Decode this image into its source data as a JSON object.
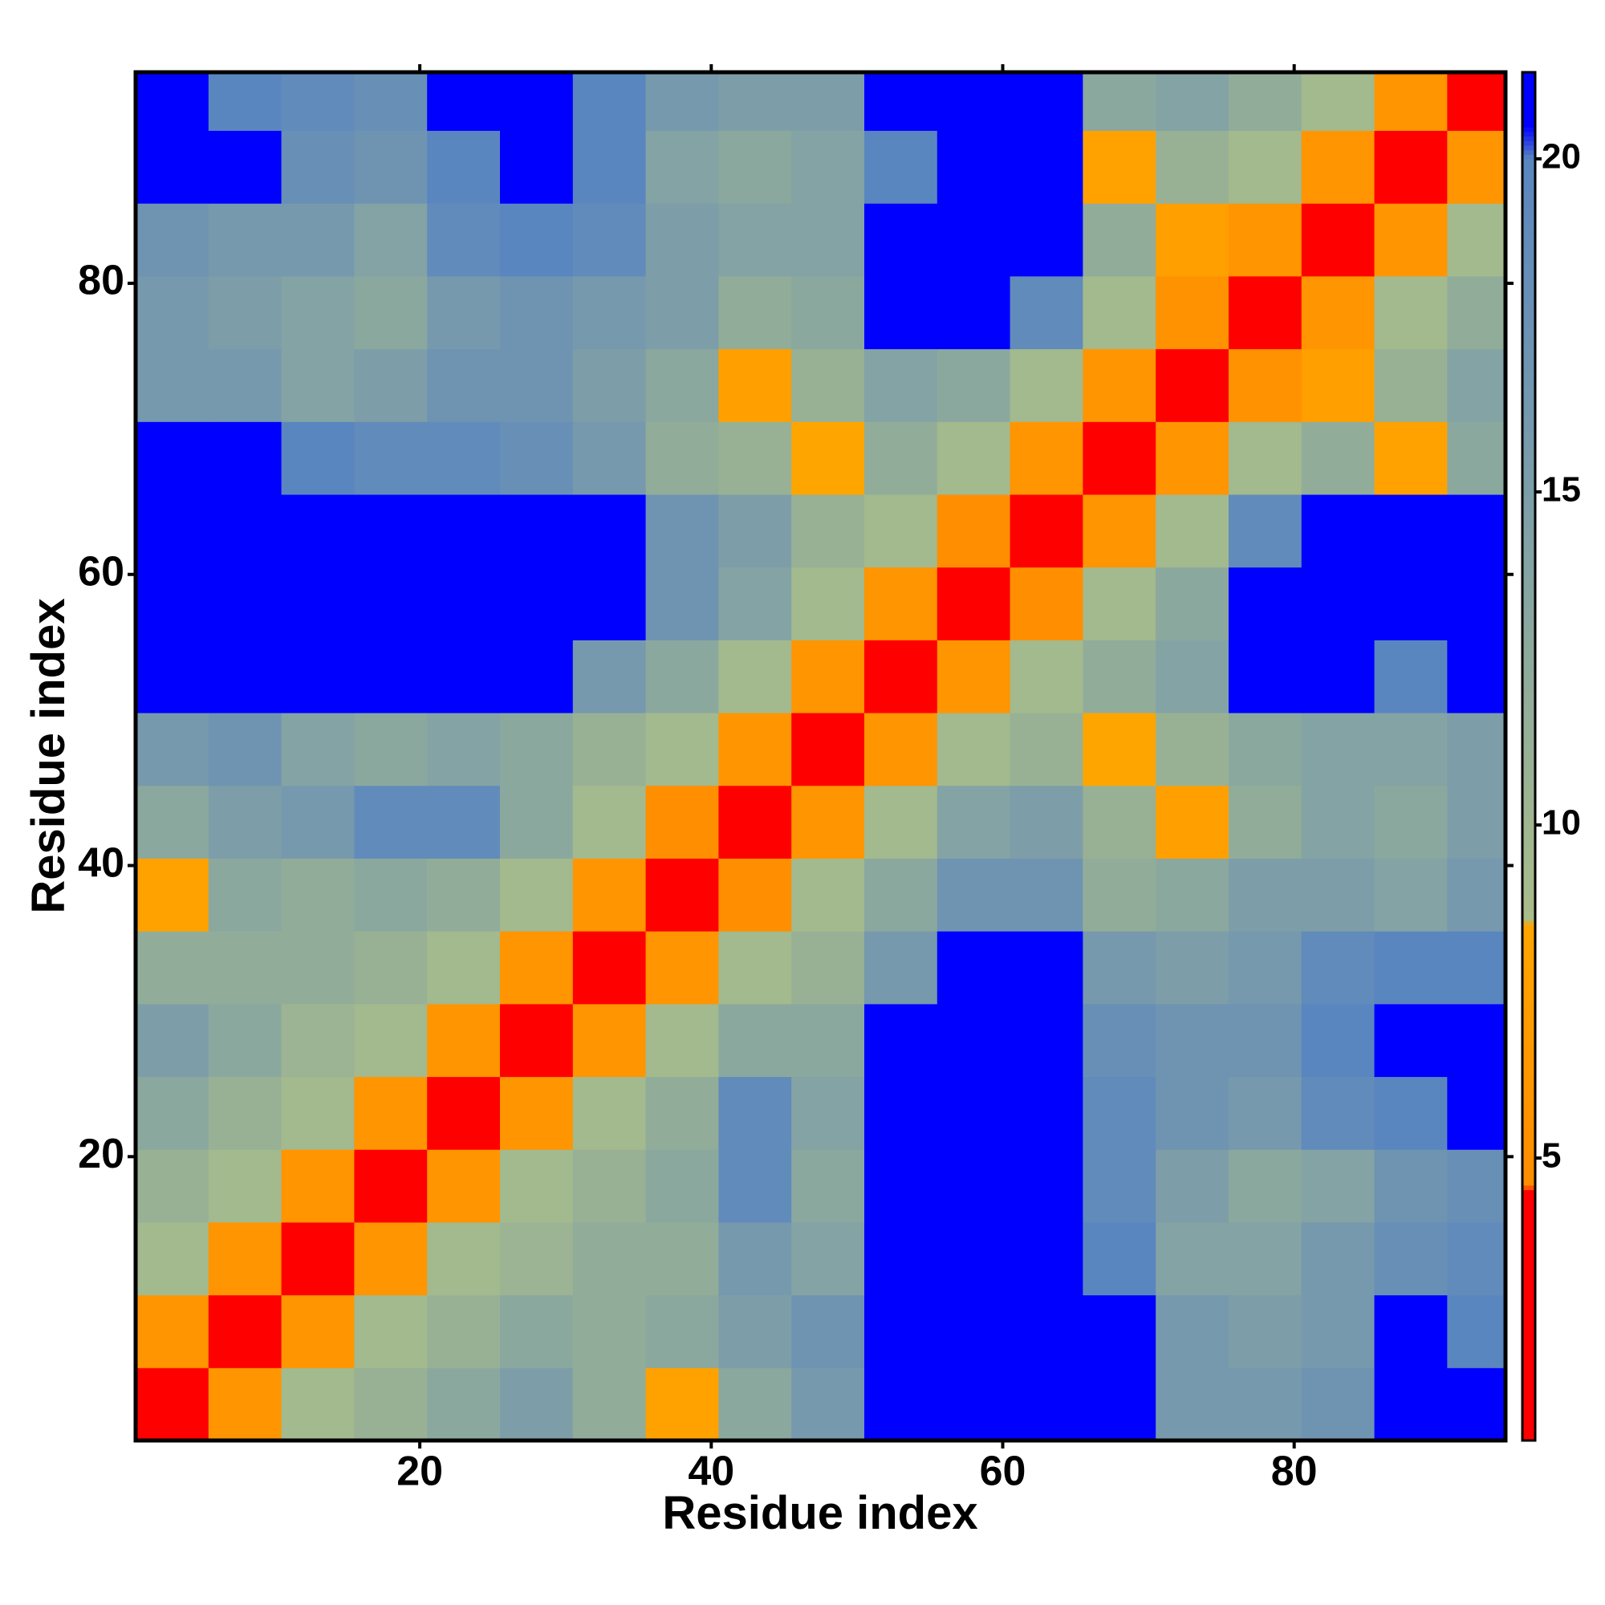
{
  "chart_data": {
    "type": "heatmap",
    "xlabel": "Residue index",
    "ylabel": "Residue index",
    "x_bins": [
      0.5,
      5.5,
      10.5,
      15.5,
      20.5,
      25.5,
      30.5,
      35.5,
      40.5,
      45.5,
      50.5,
      55.5,
      60.5,
      65.5,
      70.5,
      75.5,
      80.5,
      85.5,
      90.5,
      94.5
    ],
    "y_bins": [
      0.5,
      5.5,
      10.5,
      15.5,
      20.5,
      25.5,
      30.5,
      35.5,
      40.5,
      45.5,
      50.5,
      55.5,
      60.5,
      65.5,
      70.5,
      75.5,
      80.5,
      85.5,
      90.5,
      94.5
    ],
    "z": [
      [
        2.5,
        6,
        9.5,
        11,
        13,
        15,
        12,
        8,
        13,
        16,
        21,
        21,
        21,
        21,
        16,
        16,
        17,
        21,
        21
      ],
      [
        6,
        2.5,
        6,
        9.5,
        11,
        13,
        12,
        13,
        15,
        17,
        21,
        21,
        21,
        21,
        16,
        15,
        16,
        21,
        20
      ],
      [
        9.5,
        6,
        2.5,
        6,
        9.5,
        10.5,
        12,
        12,
        16,
        14,
        21,
        21,
        21,
        20,
        14,
        14,
        16,
        18,
        19
      ],
      [
        11,
        9.5,
        6,
        2.5,
        6,
        9.5,
        11,
        13,
        19,
        13,
        21,
        21,
        21,
        19,
        15,
        13,
        14,
        17,
        18
      ],
      [
        13,
        11,
        9.5,
        6,
        2.5,
        6,
        9.5,
        12,
        19,
        14,
        21,
        21,
        21,
        19,
        17,
        16,
        19,
        20,
        21
      ],
      [
        15,
        13,
        10.5,
        9.5,
        6,
        2.5,
        6,
        9.5,
        13,
        13,
        21,
        21,
        21,
        18,
        17,
        17,
        20,
        21,
        21
      ],
      [
        12,
        12,
        12,
        11,
        9.5,
        6,
        2.5,
        6,
        9.5,
        11,
        16,
        21,
        21,
        16,
        15,
        16,
        19,
        20,
        20
      ],
      [
        8,
        13,
        12,
        13,
        12,
        9.5,
        6,
        2.5,
        5,
        9.5,
        13,
        17,
        17,
        12,
        13,
        15,
        15,
        14,
        16
      ],
      [
        13,
        15,
        16,
        19,
        19,
        13,
        9.5,
        5,
        2.5,
        6,
        9.5,
        14,
        15,
        11,
        7.5,
        12,
        14,
        13,
        15
      ],
      [
        16,
        17,
        14,
        13,
        14,
        13,
        11,
        9.5,
        6,
        2.5,
        6,
        9.5,
        11,
        8.5,
        11,
        13,
        14,
        14,
        15
      ],
      [
        21,
        21,
        21,
        21,
        21,
        21,
        16,
        13,
        9.5,
        6,
        2.5,
        6,
        9.5,
        12,
        14,
        21,
        21,
        20,
        21
      ],
      [
        21,
        21,
        21,
        21,
        21,
        21,
        21,
        17,
        14,
        9.5,
        6,
        2.5,
        5,
        9.5,
        13,
        21,
        21,
        21,
        21
      ],
      [
        21,
        21,
        21,
        21,
        21,
        21,
        21,
        17,
        15,
        11,
        9.5,
        5,
        2.5,
        6,
        9.5,
        19,
        21,
        21,
        21
      ],
      [
        21,
        21,
        20,
        19,
        19,
        18,
        16,
        12,
        11,
        8.5,
        12,
        9.5,
        6,
        2.5,
        6,
        9.5,
        12,
        8,
        13
      ],
      [
        16,
        16,
        14,
        15,
        17,
        17,
        15,
        13,
        7.5,
        11,
        14,
        13,
        9.5,
        6,
        2.5,
        5.5,
        7.5,
        11,
        14
      ],
      [
        16,
        15,
        14,
        13,
        16,
        17,
        16,
        15,
        12,
        13,
        21,
        21,
        19,
        9.5,
        5.5,
        2.5,
        6,
        9.5,
        12
      ],
      [
        17,
        16,
        16,
        14,
        19,
        20,
        19,
        15,
        14,
        14,
        21,
        21,
        21,
        12,
        7.5,
        6,
        2.5,
        6,
        9.5
      ],
      [
        21,
        21,
        18,
        17,
        20,
        21,
        20,
        14,
        13,
        14,
        20,
        21,
        21,
        8,
        11,
        9.5,
        6,
        2.5,
        6
      ],
      [
        21,
        20,
        19,
        18,
        21,
        21,
        20,
        16,
        15,
        15,
        21,
        21,
        21,
        13,
        14,
        12,
        9.5,
        6,
        2.5
      ]
    ],
    "xlim": [
      0.5,
      94.5
    ],
    "ylim": [
      0.5,
      94.5
    ],
    "xticks": [
      20,
      40,
      60,
      80
    ],
    "yticks": [
      20,
      40,
      60,
      80
    ],
    "clim": [
      0.76,
      21.3
    ],
    "cticks": [
      5,
      10,
      15,
      20
    ],
    "colormap": [
      {
        "value": 0.76,
        "color": "#ff0000"
      },
      {
        "value": 4.5,
        "color": "#ff0000"
      },
      {
        "value": 4.6,
        "color": "#ff8c00"
      },
      {
        "value": 8.5,
        "color": "#ffa500"
      },
      {
        "value": 8.6,
        "color": "#a9bd8a"
      },
      {
        "value": 20,
        "color": "#5a86c0"
      },
      {
        "value": 20.5,
        "color": "#0000ff"
      },
      {
        "value": 21.3,
        "color": "#0000ff"
      }
    ]
  }
}
